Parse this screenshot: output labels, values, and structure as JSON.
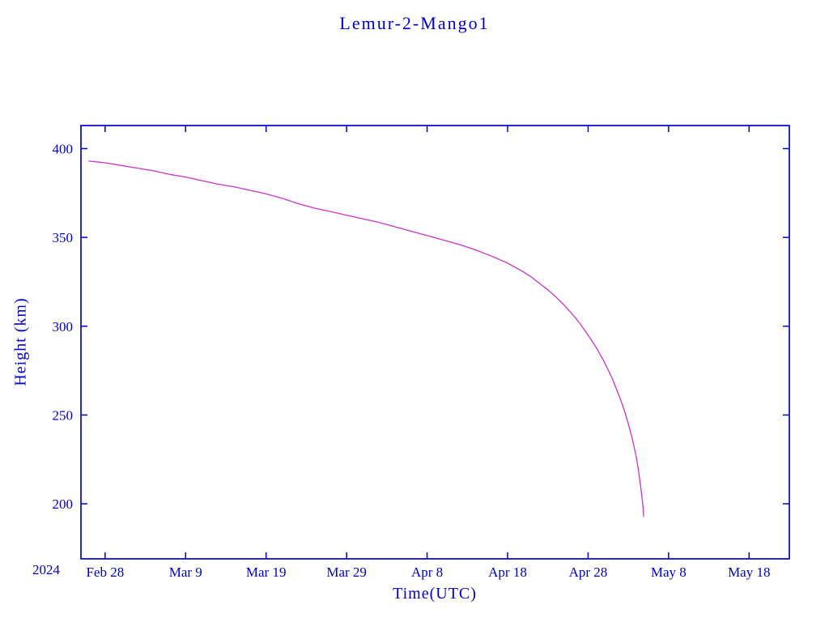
{
  "page": {
    "background": "#ffffff"
  },
  "chart_data": {
    "type": "line",
    "title": "Lemur-2-Mango1",
    "xlabel": "Time(UTC)",
    "ylabel": "Height (km)",
    "year_label": "2024",
    "axis_color": "#0000cc",
    "line_color": "#cc33cc",
    "grid": false,
    "legend": "none",
    "x_unit": "days since 2024 Feb 28 (UTC)",
    "xlim": [
      -3,
      85
    ],
    "ylim": [
      169,
      413
    ],
    "x_ticks": [
      {
        "day": 0,
        "label": "Feb 28"
      },
      {
        "day": 10,
        "label": "Mar 9"
      },
      {
        "day": 20,
        "label": "Mar 19"
      },
      {
        "day": 30,
        "label": "Mar 29"
      },
      {
        "day": 40,
        "label": "Apr 8"
      },
      {
        "day": 50,
        "label": "Apr 18"
      },
      {
        "day": 60,
        "label": "Apr 28"
      },
      {
        "day": 70,
        "label": "May 8"
      },
      {
        "day": 80,
        "label": "May 18"
      }
    ],
    "y_ticks": [
      200,
      250,
      300,
      350,
      400
    ],
    "series": [
      {
        "name": "Height (km)",
        "points": [
          [
            -2,
            393
          ],
          [
            0,
            392
          ],
          [
            2,
            390.5
          ],
          [
            4,
            389
          ],
          [
            6,
            387.5
          ],
          [
            8,
            385.5
          ],
          [
            10,
            384
          ],
          [
            12,
            382
          ],
          [
            14,
            380
          ],
          [
            16,
            378.5
          ],
          [
            18,
            376.5
          ],
          [
            20,
            374.5
          ],
          [
            22,
            372
          ],
          [
            24,
            369
          ],
          [
            26,
            366.5
          ],
          [
            28,
            364.5
          ],
          [
            30,
            362.5
          ],
          [
            32,
            360.5
          ],
          [
            34,
            358.5
          ],
          [
            36,
            356
          ],
          [
            38,
            353.5
          ],
          [
            40,
            351
          ],
          [
            42,
            348.5
          ],
          [
            44,
            346
          ],
          [
            46,
            343
          ],
          [
            48,
            339.5
          ],
          [
            50,
            335.5
          ],
          [
            51,
            333
          ],
          [
            52,
            330.5
          ],
          [
            53,
            327.5
          ],
          [
            54,
            324
          ],
          [
            55,
            320.5
          ],
          [
            56,
            316.5
          ],
          [
            57,
            312
          ],
          [
            58,
            307
          ],
          [
            59,
            301.5
          ],
          [
            60,
            295
          ],
          [
            61,
            288
          ],
          [
            62,
            280
          ],
          [
            63,
            270.5
          ],
          [
            64,
            259
          ],
          [
            64.5,
            252.5
          ],
          [
            65,
            245
          ],
          [
            65.5,
            236.5
          ],
          [
            66,
            226
          ],
          [
            66.3,
            217.5
          ],
          [
            66.6,
            207.5
          ],
          [
            66.8,
            199.5
          ],
          [
            66.9,
            193
          ]
        ]
      }
    ]
  }
}
